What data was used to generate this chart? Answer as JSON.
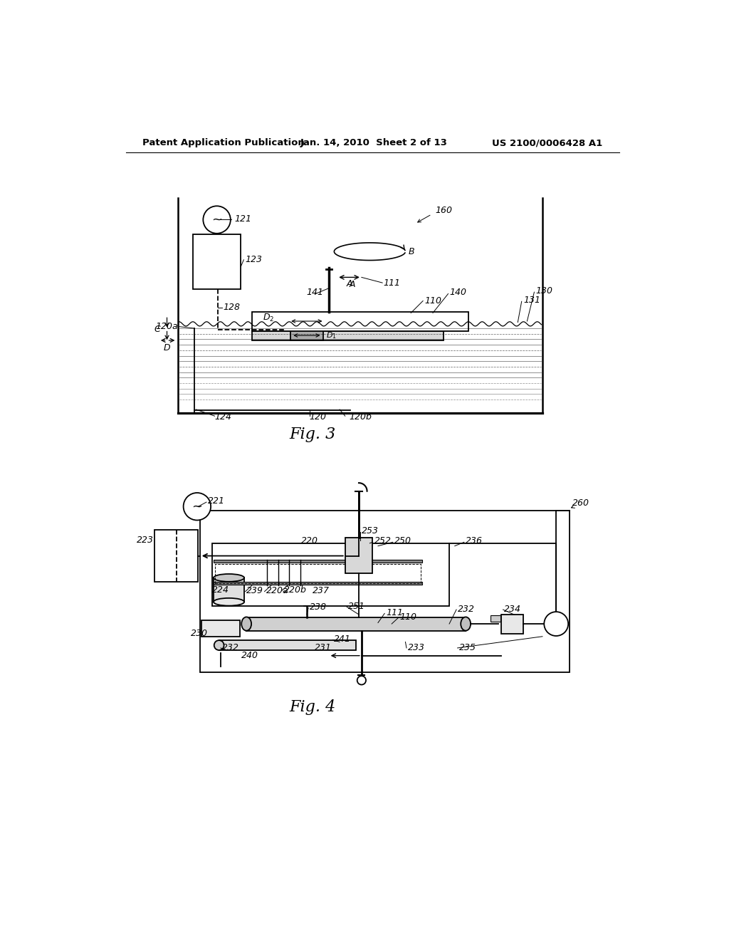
{
  "header_left": "Patent Application Publication",
  "header_mid": "Jan. 14, 2010  Sheet 2 of 13",
  "header_right": "US 2100/0006428 A1",
  "fig3_caption": "Fig. 3",
  "fig4_caption": "Fig. 4",
  "bg_color": "#ffffff",
  "line_color": "#000000"
}
